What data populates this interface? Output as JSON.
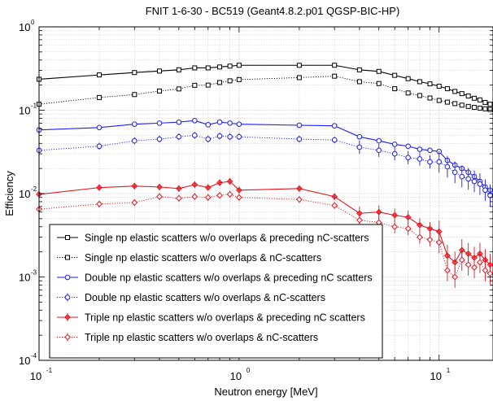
{
  "chart_data": {
    "type": "line",
    "title": "FNIT 1-6-30 - BC519 (Geant4.8.2.p01 QGSP-BIC-HP)",
    "xlabel": "Neutron energy [MeV]",
    "ylabel": "Efficiency",
    "xscale": "log",
    "yscale": "log",
    "xlim": [
      0.1,
      18.6
    ],
    "ylim": [
      0.0001,
      1
    ],
    "grid": true,
    "legend_position": "lower-left",
    "x_ticks": [
      {
        "base": "10",
        "exp": "-1"
      },
      {
        "base": "10",
        "exp": "0"
      },
      {
        "base": "10",
        "exp": "1"
      }
    ],
    "y_ticks": [
      {
        "base": "10",
        "exp": "0"
      },
      {
        "base": "10",
        "exp": "-1"
      },
      {
        "base": "10",
        "exp": "-2"
      },
      {
        "base": "10",
        "exp": "-3"
      },
      {
        "base": "10",
        "exp": "-4"
      }
    ],
    "series": [
      {
        "name": "Single np elastic scatters w/o overlaps & preceding nC-scatters",
        "color": "#000000",
        "marker": "square",
        "line": "solid",
        "errorbars": false,
        "x": [
          0.1,
          0.2,
          0.3,
          0.4,
          0.5,
          0.6,
          0.7,
          0.8,
          0.9,
          1.0,
          2.0,
          3.0,
          4.0,
          5.0,
          6.0,
          7.0,
          8.0,
          9.0,
          10.0,
          11.0,
          12.0,
          13.0,
          14.0,
          15.0,
          16.0,
          17.0,
          18.0
        ],
        "y": [
          0.235,
          0.265,
          0.283,
          0.295,
          0.305,
          0.322,
          0.322,
          0.33,
          0.338,
          0.346,
          0.346,
          0.346,
          0.305,
          0.292,
          0.262,
          0.239,
          0.22,
          0.207,
          0.194,
          0.181,
          0.168,
          0.158,
          0.148,
          0.139,
          0.133,
          0.124,
          0.118
        ]
      },
      {
        "name": "Single np elastic scatters w/o overlaps & nC-scatters",
        "color": "#000000",
        "marker": "square-open",
        "line": "dotted",
        "errorbars": false,
        "x": [
          0.1,
          0.2,
          0.3,
          0.4,
          0.5,
          0.6,
          0.7,
          0.8,
          0.9,
          1.0,
          2.0,
          3.0,
          4.0,
          5.0,
          6.0,
          7.0,
          8.0,
          9.0,
          10.0,
          11.0,
          12.0,
          13.0,
          14.0,
          15.0,
          16.0,
          17.0,
          18.0
        ],
        "y": [
          0.118,
          0.142,
          0.154,
          0.17,
          0.18,
          0.199,
          0.2,
          0.215,
          0.225,
          0.233,
          0.246,
          0.256,
          0.22,
          0.209,
          0.181,
          0.161,
          0.15,
          0.14,
          0.131,
          0.125,
          0.12,
          0.115,
          0.111,
          0.108,
          0.106,
          0.104,
          0.102
        ]
      },
      {
        "name": "Double np elastic scatters w/o overlaps & preceding nC scatters",
        "color": "#1a1aff",
        "marker": "circle",
        "line": "solid",
        "errorbars": false,
        "x": [
          0.1,
          0.2,
          0.3,
          0.4,
          0.5,
          0.6,
          0.7,
          0.8,
          0.9,
          1.0,
          2.0,
          3.0,
          4.0,
          5.0,
          6.0,
          7.0,
          8.0,
          9.0,
          10.0,
          11.0,
          12.0,
          13.0,
          14.0,
          15.0,
          16.0,
          17.0,
          18.0
        ],
        "y": [
          0.058,
          0.062,
          0.068,
          0.07,
          0.072,
          0.075,
          0.067,
          0.072,
          0.07,
          0.068,
          0.066,
          0.065,
          0.048,
          0.043,
          0.039,
          0.037,
          0.034,
          0.033,
          0.032,
          0.025,
          0.022,
          0.02,
          0.018,
          0.016,
          0.014,
          0.012,
          0.011
        ]
      },
      {
        "name": "Double np elastic scatters w/o overlaps & nC-scatters",
        "color": "#1a1aff",
        "marker": "circle-open",
        "line": "dotted",
        "errorbars": true,
        "x": [
          0.1,
          0.2,
          0.3,
          0.4,
          0.5,
          0.6,
          0.7,
          0.8,
          0.9,
          1.0,
          2.0,
          3.0,
          4.0,
          5.0,
          6.0,
          7.0,
          8.0,
          9.0,
          10.0,
          11.0,
          12.0,
          13.0,
          14.0,
          15.0,
          16.0,
          17.0,
          18.0
        ],
        "y": [
          0.033,
          0.037,
          0.043,
          0.045,
          0.048,
          0.05,
          0.045,
          0.049,
          0.048,
          0.048,
          0.045,
          0.044,
          0.036,
          0.033,
          0.03,
          0.027,
          0.026,
          0.024,
          0.024,
          0.021,
          0.018,
          0.016,
          0.015,
          0.014,
          0.013,
          0.011,
          0.0095
        ]
      },
      {
        "name": "Triple np elastic scatters w/o overlaps & preceding nC scatters",
        "color": "#e8141e",
        "marker": "diamond",
        "line": "solid",
        "errorbars": true,
        "x": [
          0.1,
          0.2,
          0.3,
          0.4,
          0.5,
          0.6,
          0.7,
          0.8,
          0.9,
          1.0,
          2.0,
          3.0,
          4.0,
          5.0,
          6.0,
          7.0,
          8.0,
          9.0,
          10.0,
          11.0,
          12.0,
          13.0,
          14.0,
          15.0,
          16.0,
          17.0,
          18.0
        ],
        "y": [
          0.0098,
          0.0118,
          0.0123,
          0.012,
          0.0115,
          0.0128,
          0.0118,
          0.0135,
          0.014,
          0.011,
          0.0115,
          0.0092,
          0.0058,
          0.006,
          0.0055,
          0.0052,
          0.0042,
          0.0038,
          0.0035,
          0.0018,
          0.0015,
          0.0021,
          0.0019,
          0.0017,
          0.0019,
          0.0016,
          0.0014
        ]
      },
      {
        "name": "Triple np elastic scatters w/o overlaps & nC-scatters",
        "color": "#e8141e",
        "marker": "diamond-open",
        "line": "dotted",
        "errorbars": true,
        "x": [
          0.1,
          0.2,
          0.3,
          0.4,
          0.5,
          0.6,
          0.7,
          0.8,
          0.9,
          1.0,
          2.0,
          3.0,
          4.0,
          5.0,
          6.0,
          7.0,
          8.0,
          9.0,
          10.0,
          11.0,
          12.0,
          13.0,
          14.0,
          15.0,
          16.0,
          17.0,
          18.0
        ],
        "y": [
          0.0065,
          0.0075,
          0.0078,
          0.0092,
          0.0088,
          0.0092,
          0.009,
          0.0095,
          0.0098,
          0.009,
          0.0085,
          0.0072,
          0.0048,
          0.0045,
          0.004,
          0.0038,
          0.003,
          0.0028,
          0.0026,
          0.0012,
          0.001,
          0.0016,
          0.0014,
          0.0013,
          0.0015,
          0.0012,
          0.0011
        ]
      }
    ]
  }
}
